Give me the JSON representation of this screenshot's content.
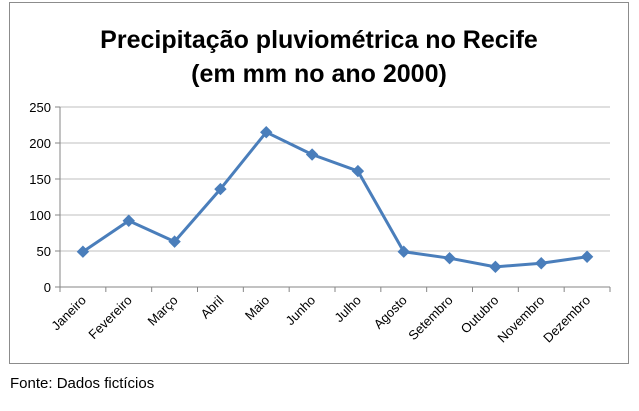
{
  "chart_data": {
    "type": "line",
    "title_line1": "Precipitação pluviométrica no Recife",
    "title_line2": "(em mm no ano 2000)",
    "xlabel": "",
    "ylabel": "",
    "ylim": [
      0,
      250
    ],
    "yticks": [
      0,
      50,
      100,
      150,
      200,
      250
    ],
    "grid": true,
    "legend": "none",
    "categories": [
      "Janeiro",
      "Fevereiro",
      "Março",
      "Abril",
      "Maio",
      "Junho",
      "Julho",
      "Agosto",
      "Setembro",
      "Outubro",
      "Novembro",
      "Dezembro"
    ],
    "series": [
      {
        "name": "Precipitação",
        "values": [
          49,
          92,
          63,
          136,
          215,
          184,
          161,
          49,
          40,
          28,
          33,
          42
        ],
        "color": "#4a7ebb"
      }
    ]
  },
  "source": "Fonte: Dados fictícios"
}
